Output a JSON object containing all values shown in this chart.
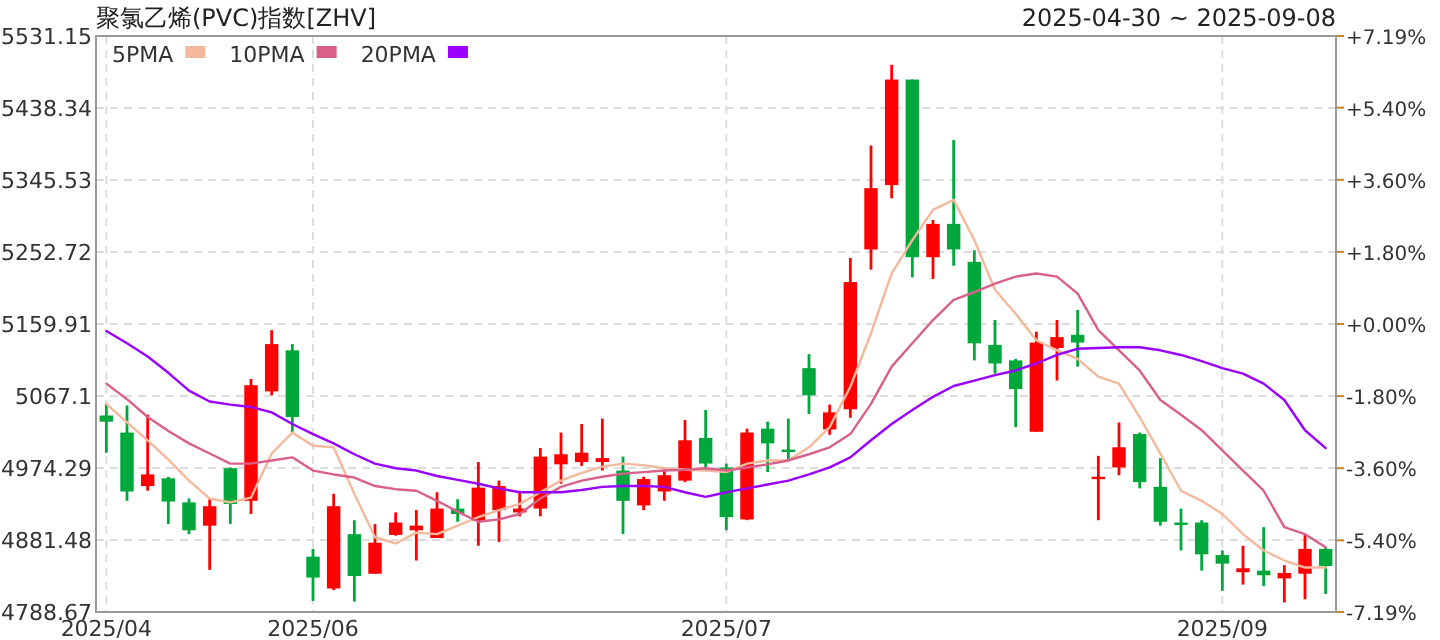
{
  "chart_data": {
    "type": "candlestick",
    "title": "聚氯乙烯(PVC)指数[ZHV]",
    "subtitle": "2025-04-30 ~ 2025-09-08",
    "categories": [
      "2025/04",
      null,
      null,
      null,
      null,
      null,
      null,
      null,
      null,
      null,
      "2025/06",
      null,
      null,
      null,
      null,
      null,
      null,
      null,
      null,
      null,
      null,
      null,
      null,
      null,
      null,
      null,
      null,
      null,
      null,
      null,
      "2025/07",
      null,
      null,
      null,
      null,
      null,
      null,
      null,
      null,
      null,
      null,
      null,
      null,
      null,
      null,
      null,
      null,
      null,
      null,
      null,
      null,
      null,
      null,
      null,
      "2025/09",
      null,
      null,
      null,
      null,
      null
    ],
    "ohlc": [
      [
        5042,
        5057,
        4994,
        5034
      ],
      [
        5020,
        5055,
        4932,
        4944
      ],
      [
        4951,
        5043,
        4945,
        4966
      ],
      [
        4961,
        4963,
        4902,
        4931
      ],
      [
        4930,
        4935,
        4889,
        4894
      ],
      [
        4900,
        4934,
        4843,
        4925
      ],
      [
        4974,
        4975,
        4902,
        4928
      ],
      [
        4932,
        5089,
        4915,
        5081
      ],
      [
        5073,
        5152,
        5068,
        5134
      ],
      [
        5126,
        5134,
        5019,
        5040
      ],
      [
        4860,
        4870,
        4803,
        4833
      ],
      [
        4819,
        4941,
        4817,
        4925
      ],
      [
        4889,
        4907,
        4802,
        4835
      ],
      [
        4838,
        4902,
        4838,
        4878
      ],
      [
        4888,
        4917,
        4887,
        4904
      ],
      [
        4894,
        4920,
        4855,
        4900
      ],
      [
        4884,
        4943,
        4884,
        4922
      ],
      [
        4922,
        4934,
        4905,
        4915
      ],
      [
        4906,
        4982,
        4874,
        4949
      ],
      [
        4920,
        4958,
        4879,
        4951
      ],
      [
        4917,
        4945,
        4912,
        4922
      ],
      [
        4922,
        5000,
        4912,
        4989
      ],
      [
        4979,
        5020,
        4954,
        4992
      ],
      [
        4982,
        5031,
        4977,
        4994
      ],
      [
        4982,
        5038,
        4971,
        4987
      ],
      [
        4971,
        4989,
        4889,
        4932
      ],
      [
        4926,
        4963,
        4920,
        4960
      ],
      [
        4944,
        4974,
        4932,
        4965
      ],
      [
        4958,
        5036,
        4956,
        5010
      ],
      [
        5013,
        5049,
        4971,
        4980
      ],
      [
        4975,
        4980,
        4894,
        4911
      ],
      [
        4908,
        5025,
        4907,
        5020
      ],
      [
        5025,
        5034,
        4969,
        5006
      ],
      [
        4998,
        5038,
        4984,
        4995
      ],
      [
        5103,
        5121,
        5044,
        5068
      ],
      [
        5024,
        5056,
        5017,
        5046
      ],
      [
        5050,
        5245,
        5039,
        5214
      ],
      [
        5256,
        5390,
        5230,
        5335
      ],
      [
        5339,
        5494,
        5322,
        5475
      ],
      [
        5475,
        5475,
        5220,
        5246
      ],
      [
        5246,
        5294,
        5218,
        5289
      ],
      [
        5289,
        5397,
        5235,
        5256
      ],
      [
        5240,
        5255,
        5113,
        5135
      ],
      [
        5133,
        5165,
        5096,
        5109
      ],
      [
        5113,
        5115,
        5027,
        5076
      ],
      [
        5021,
        5150,
        5021,
        5136
      ],
      [
        5129,
        5165,
        5087,
        5143
      ],
      [
        5146,
        5178,
        5105,
        5136
      ],
      [
        4962,
        4990,
        4907,
        4963
      ],
      [
        4975,
        5033,
        4965,
        5001
      ],
      [
        5018,
        5020,
        4948,
        4956
      ],
      [
        4950,
        4987,
        4900,
        4905
      ],
      [
        4904,
        4922,
        4868,
        4902
      ],
      [
        4904,
        4907,
        4842,
        4863
      ],
      [
        4862,
        4868,
        4816,
        4851
      ],
      [
        4840,
        4874,
        4824,
        4845
      ],
      [
        4842,
        4898,
        4822,
        4836
      ],
      [
        4832,
        4849,
        4801,
        4839
      ],
      [
        4838,
        4889,
        4805,
        4870
      ],
      [
        4870,
        4872,
        4812,
        4848
      ]
    ],
    "colors": [
      "#00a83c",
      "#00a83c",
      "#ff0000",
      "#00a83c",
      "#00a83c",
      "#ff0000",
      "#00a83c",
      "#ff0000",
      "#ff0000",
      "#00a83c",
      "#00a83c",
      "#ff0000",
      "#00a83c",
      "#ff0000",
      "#ff0000",
      "#ff0000",
      "#ff0000",
      "#00a83c",
      "#ff0000",
      "#ff0000",
      "#ff0000",
      "#ff0000",
      "#ff0000",
      "#ff0000",
      "#ff0000",
      "#00a83c",
      "#ff0000",
      "#ff0000",
      "#ff0000",
      "#00a83c",
      "#00a83c",
      "#ff0000",
      "#00a83c",
      "#00a83c",
      "#00a83c",
      "#ff0000",
      "#ff0000",
      "#ff0000",
      "#ff0000",
      "#00a83c",
      "#ff0000",
      "#00a83c",
      "#00a83c",
      "#00a83c",
      "#00a83c",
      "#ff0000",
      "#ff0000",
      "#00a83c",
      "#ff0000",
      "#ff0000",
      "#00a83c",
      "#00a83c",
      "#00a83c",
      "#00a83c",
      "#00a83c",
      "#ff0000",
      "#00a83c",
      "#ff0000",
      "#ff0000",
      "#00a83c"
    ],
    "series": [
      {
        "name": "5PMA",
        "type": "line",
        "color": "#f4b99c",
        "values": [
          5057,
          5033,
          5010,
          4985,
          4958,
          4935,
          4930,
          4936,
          4993,
          5020,
          5003,
          5001,
          4941,
          4885,
          4877,
          4891,
          4889,
          4900,
          4911,
          4920,
          4928,
          4943,
          4958,
          4968,
          4976,
          4980,
          4978,
          4974,
          4972,
          4971,
          4969,
          4980,
          4984,
          4984,
          5001,
          5027,
          5079,
          5148,
          5225,
          5268,
          5307,
          5320,
          5268,
          5204,
          5173,
          5139,
          5126,
          5115,
          5092,
          5083,
          5040,
          4993,
          4945,
          4932,
          4915,
          4889,
          4868,
          4855,
          4846,
          4846
        ]
      },
      {
        "name": "10PMA",
        "type": "line",
        "color": "#d8608a",
        "values": [
          5083,
          5063,
          5040,
          5022,
          5006,
          4993,
          4980,
          4980,
          4984,
          4988,
          4971,
          4966,
          4962,
          4951,
          4947,
          4945,
          4932,
          4918,
          4905,
          4908,
          4915,
          4935,
          4950,
          4958,
          4963,
          4967,
          4969,
          4971,
          4972,
          4974,
          4971,
          4975,
          4979,
          4984,
          4992,
          5001,
          5018,
          5057,
          5105,
          5135,
          5165,
          5191,
          5201,
          5212,
          5221,
          5225,
          5221,
          5199,
          5152,
          5126,
          5100,
          5062,
          5043,
          5023,
          4997,
          4971,
          4945,
          4898,
          4889,
          4872
        ]
      },
      {
        "name": "20PMA",
        "type": "line",
        "color": "#9900ff",
        "values": [
          5151,
          5135,
          5118,
          5097,
          5074,
          5060,
          5056,
          5053,
          5046,
          5031,
          5018,
          5006,
          4992,
          4980,
          4974,
          4971,
          4964,
          4959,
          4954,
          4948,
          4943,
          4943,
          4943,
          4946,
          4950,
          4951,
          4951,
          4950,
          4943,
          4937,
          4943,
          4948,
          4953,
          4958,
          4966,
          4975,
          4988,
          5010,
          5031,
          5049,
          5066,
          5080,
          5087,
          5094,
          5100,
          5109,
          5120,
          5128,
          5129,
          5130,
          5130,
          5126,
          5120,
          5112,
          5103,
          5096,
          5083,
          5062,
          5023,
          5000
        ]
      }
    ],
    "ylim": [
      4788.67,
      5531.15
    ],
    "yticks": [
      4788.67,
      4881.48,
      4974.29,
      5067.1,
      5159.91,
      5252.72,
      5345.53,
      5438.34,
      5531.15
    ],
    "y2lim": [
      -7.19,
      7.19
    ],
    "y2ticks": [
      {
        "value": -7.19,
        "label": "-7.19%"
      },
      {
        "value": -5.4,
        "label": "-5.40%"
      },
      {
        "value": -3.6,
        "label": "-3.60%"
      },
      {
        "value": -1.8,
        "label": "-1.80%"
      },
      {
        "value": 0,
        "label": "+0.00%"
      },
      {
        "value": 1.8,
        "label": "+1.80%"
      },
      {
        "value": 3.6,
        "label": "+3.60%"
      },
      {
        "value": 5.4,
        "label": "+5.40%"
      },
      {
        "value": 7.19,
        "label": "+7.19%"
      }
    ],
    "grid": true,
    "legend": "top left"
  }
}
